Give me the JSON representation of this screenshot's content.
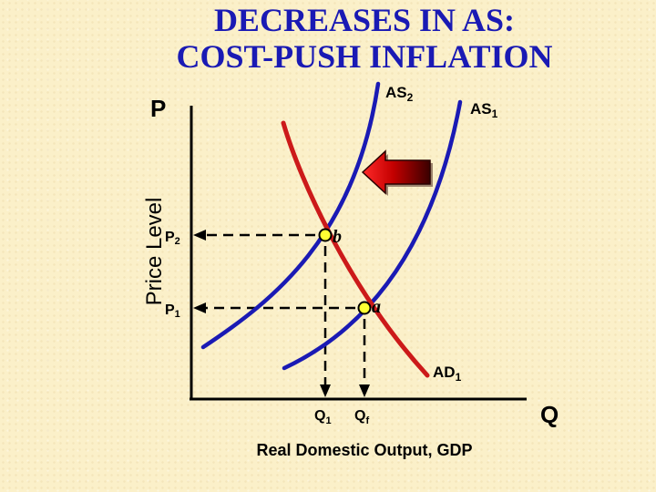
{
  "title": {
    "line1": "DECREASES IN AS:",
    "line2": "COST-PUSH INFLATION"
  },
  "axes": {
    "y_letter": "P",
    "x_letter": "Q",
    "y_title": "Price Level",
    "x_title": "Real Domestic Output, GDP"
  },
  "curves": {
    "as2": {
      "main": "AS",
      "sub": "2"
    },
    "as1": {
      "main": "AS",
      "sub": "1"
    },
    "ad1": {
      "main": "AD",
      "sub": "1"
    }
  },
  "ticks": {
    "p2": {
      "main": "P",
      "sub": "2"
    },
    "p1": {
      "main": "P",
      "sub": "1"
    },
    "q1": {
      "main": "Q",
      "sub": "1"
    },
    "qf": {
      "main": "Q",
      "sub": "f"
    }
  },
  "points": {
    "b": "b",
    "a": "a"
  },
  "colors": {
    "title": "#1a1ab4",
    "supply_curves": "#1a1ab4",
    "demand_curve": "#cc1a1a",
    "equilibrium_point": "#ffff33",
    "arrow_dark": "#5a0000",
    "arrow_light": "#ff2a2a"
  },
  "shift_arrow": {
    "direction": "left",
    "icon": "left-arrow-icon"
  }
}
